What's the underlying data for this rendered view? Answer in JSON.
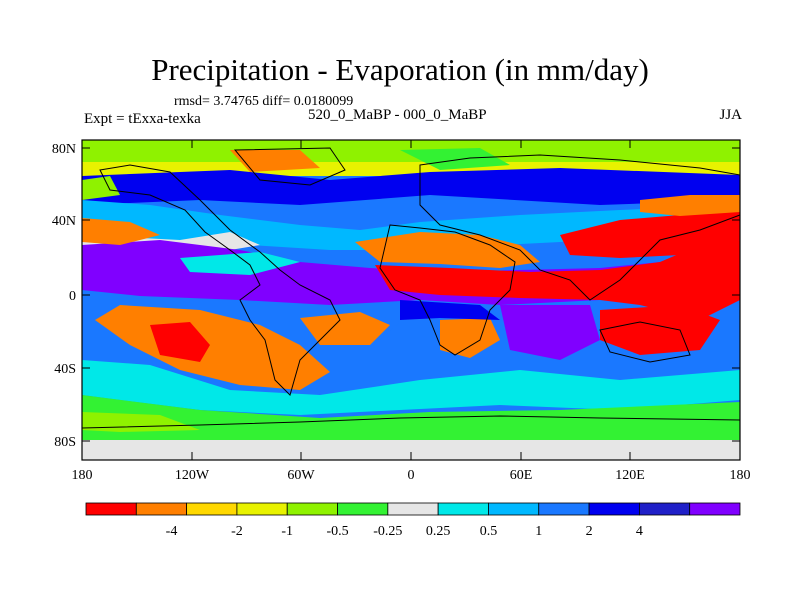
{
  "header": {
    "title": "Precipitation - Evaporation (in mm/day)",
    "stats": "rmsd= 3.74765 diff= 0.0180099",
    "left_label": "Expt = tExxa-texka",
    "center_label": "520_0_MaBP - 000_0_MaBP",
    "right_label": "JJA"
  },
  "axes": {
    "y_ticks": [
      "80N",
      "40N",
      "0",
      "40S",
      "80S"
    ],
    "x_ticks": [
      "180",
      "120W",
      "60W",
      "0",
      "60E",
      "120E",
      "180"
    ]
  },
  "colorbar": {
    "colors": [
      "#ff0000",
      "#ff7f00",
      "#ffd800",
      "#e8f200",
      "#8ff200",
      "#33f233",
      "#e6e6e6",
      "#00e8e8",
      "#00b8ff",
      "#1a78ff",
      "#0000f0",
      "#2020c8",
      "#8000ff"
    ],
    "labels": [
      "-4",
      "-2",
      "-1",
      "-0.5",
      "-0.25",
      "0.25",
      "0.5",
      "1",
      "2",
      "4"
    ]
  }
}
